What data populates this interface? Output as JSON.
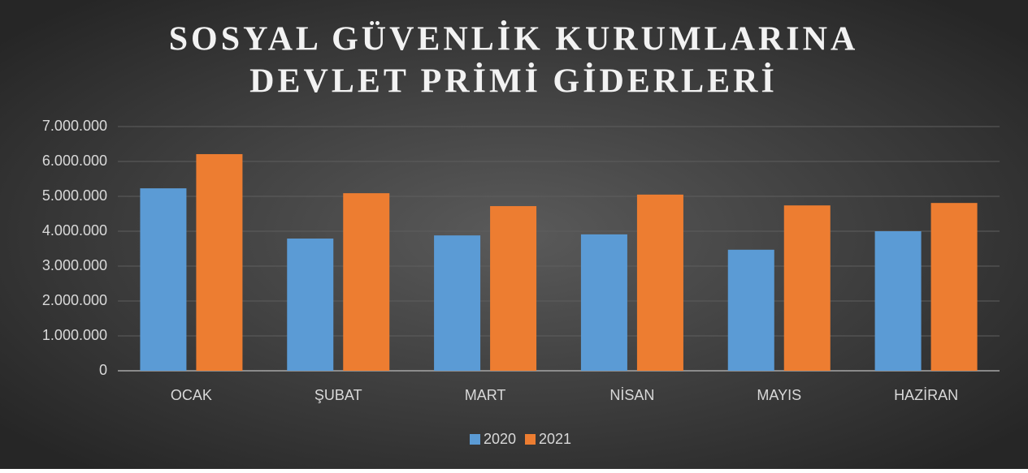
{
  "chart_data": {
    "type": "bar",
    "title": [
      "SOSYAL GÜVENLİK KURUMLARINA",
      "DEVLET PRİMİ GİDERLERİ"
    ],
    "categories": [
      "OCAK",
      "ŞUBAT",
      "MART",
      "NİSAN",
      "MAYIS",
      "HAZİRAN"
    ],
    "series": [
      {
        "name": "2020",
        "color": "#5b9bd5",
        "values": [
          5230000,
          3790000,
          3880000,
          3910000,
          3470000,
          4000000
        ]
      },
      {
        "name": "2021",
        "color": "#ed7d31",
        "values": [
          6210000,
          5090000,
          4720000,
          5050000,
          4740000,
          4810000
        ]
      }
    ],
    "ylim": [
      0,
      7000000
    ],
    "yticks": [
      0,
      {
        "value": 1000000,
        "label": "1.000.000"
      },
      {
        "value": 2000000,
        "label": "2.000.000"
      },
      {
        "value": 3000000,
        "label": "3.000.000"
      },
      {
        "value": 4000000,
        "label": "4.000.000"
      },
      {
        "value": 5000000,
        "label": "5.000.000"
      },
      {
        "value": 6000000,
        "label": "6.000.000"
      },
      {
        "value": 7000000,
        "label": "7.000.000"
      }
    ],
    "grid": true,
    "legend": "bottom"
  }
}
